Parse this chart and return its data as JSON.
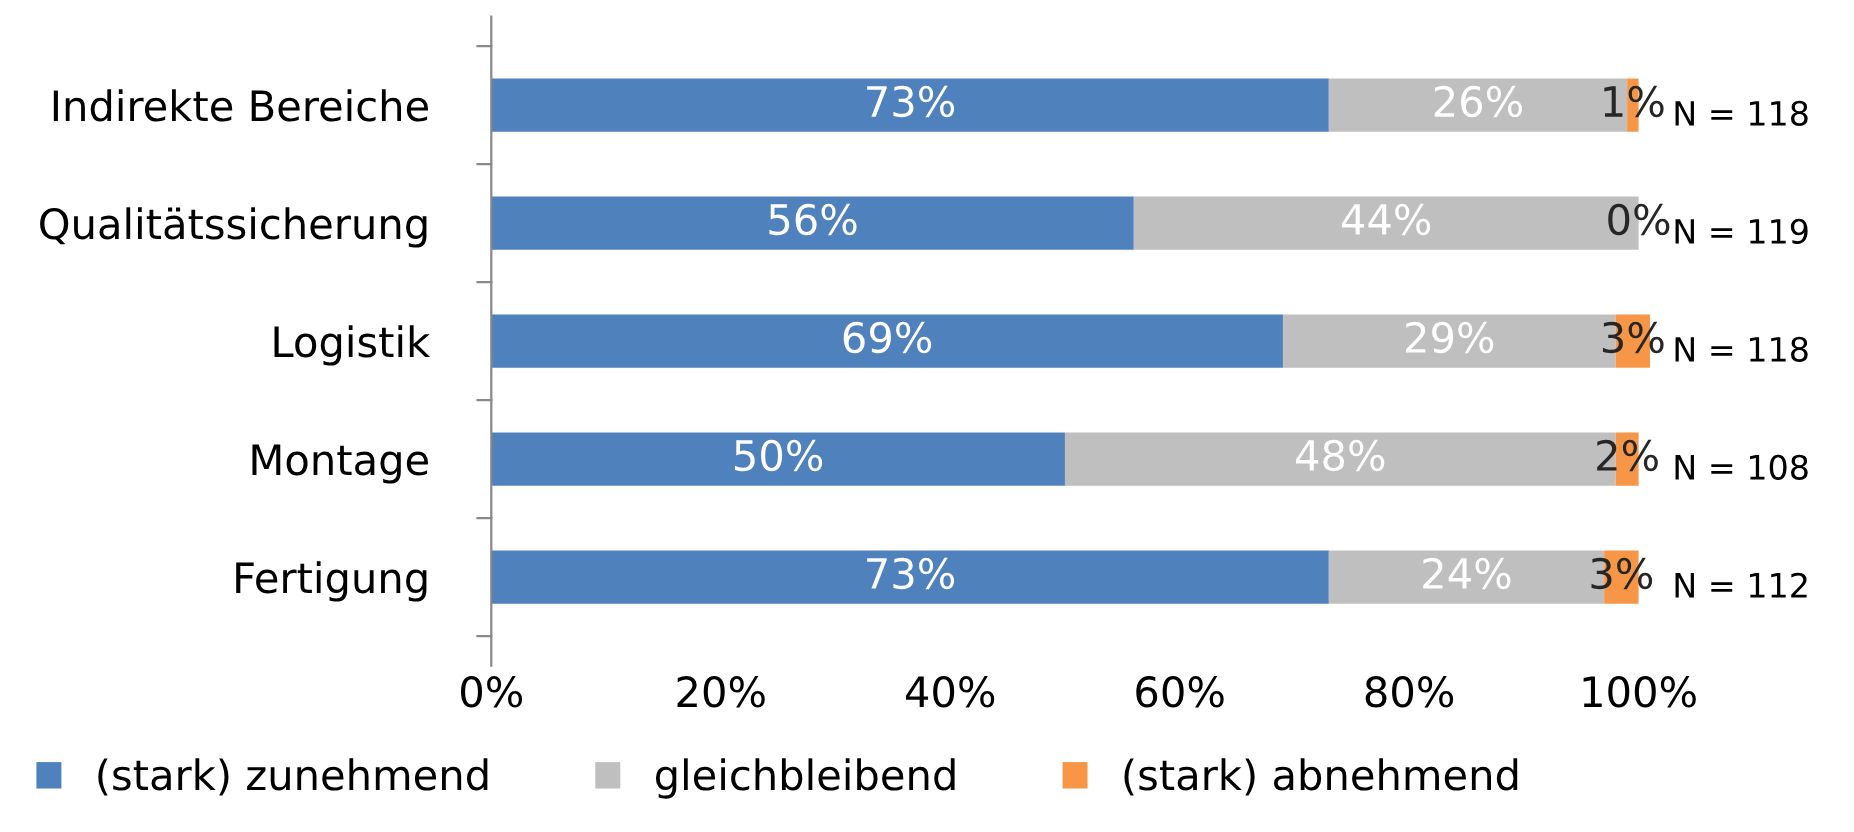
{
  "chart_data": {
    "type": "bar",
    "orientation": "horizontal",
    "stacked": true,
    "categories": [
      "Indirekte Bereiche",
      "Qualitätssicherung",
      "Logistik",
      "Montage",
      "Fertigung"
    ],
    "series": [
      {
        "name": "(stark) zunehmend",
        "color": "#4f81bd",
        "values": [
          73,
          56,
          69,
          50,
          73
        ],
        "value_labels": [
          "73%",
          "56%",
          "69%",
          "50%",
          "73%"
        ]
      },
      {
        "name": "gleichbleibend",
        "color": "#bfbfbf",
        "values": [
          26,
          44,
          29,
          48,
          24
        ],
        "value_labels": [
          "26%",
          "44%",
          "29%",
          "48%",
          "24%"
        ]
      },
      {
        "name": "(stark) abnehmend",
        "color": "#f79646",
        "values": [
          1,
          0,
          3,
          2,
          3
        ],
        "value_labels": [
          "1%",
          "0%",
          "3%",
          "2%",
          "3%"
        ]
      }
    ],
    "xlim": [
      0,
      101
    ],
    "xticks": [
      {
        "value": 0,
        "label": "0%"
      },
      {
        "value": 20,
        "label": "20%"
      },
      {
        "value": 40,
        "label": "40%"
      },
      {
        "value": 60,
        "label": "60%"
      },
      {
        "value": 80,
        "label": "80%"
      },
      {
        "value": 100,
        "label": "100%"
      }
    ],
    "annotations": [
      "N = 118",
      "N = 119",
      "N = 118",
      "N = 108",
      "N = 112"
    ],
    "grid": false,
    "legend": "bottom"
  }
}
